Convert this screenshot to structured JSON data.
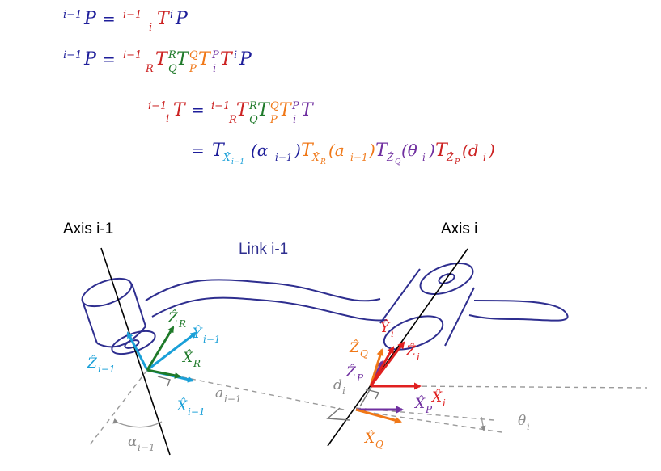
{
  "colors": {
    "red": "#cc2222",
    "green": "#1f7a2a",
    "orange": "#f07818",
    "purple": "#7030a0",
    "blue": "#1e1e9a",
    "cyan": "#1aa0d8",
    "gray": "#8a8a8a",
    "link": "#2e2e8f"
  },
  "equations": {
    "eq1": {
      "lhs_sup": "i−1",
      "lhs_base": "P",
      "eq": "=",
      "t_sup": "i−1",
      "t_sub": "i",
      "t_base": "T",
      "p_sup": "i",
      "p_base": "P"
    },
    "eq2": {
      "lhs_sup": "i−1",
      "lhs_base": "P",
      "eq": "=",
      "t1_sup": "i−1",
      "t1_sub": "R",
      "t2_sup": "R",
      "t2_sub": "Q",
      "t3_sup": "Q",
      "t3_sub": "P",
      "t4_sup": "P",
      "t4_sub": "i",
      "t_base": "T",
      "p_sup": "i",
      "p_base": "P"
    },
    "eq3": {
      "lhs_sup": "i−1",
      "lhs_sub": "i",
      "lhs_base": "T",
      "eq": "=",
      "t1_sup": "i−1",
      "t1_sub": "R",
      "t2_sup": "R",
      "t2_sub": "Q",
      "t3_sup": "Q",
      "t3_sub": "P",
      "t4_sup": "P",
      "t4_sub": "i",
      "t_base": "T"
    },
    "eq4": {
      "eq": "=",
      "f1_sub": "X̂",
      "f1_subsub": "i−1",
      "f1_arg": "(α",
      "f1_arg_sub": "i−1",
      "f2_sub": "X̂",
      "f2_subsub": "R",
      "f2_arg": "(a",
      "f2_arg_sub": "i−1",
      "f3_sub": "Ẑ",
      "f3_subsub": "Q",
      "f3_arg": "(θ",
      "f3_arg_sub": "i",
      "f4_sub": "Ẑ",
      "f4_subsub": "P",
      "f4_arg": "(d",
      "f4_arg_sub": "i",
      "close": ")",
      "t_base": "T"
    }
  },
  "diagram": {
    "axis_left_label": "Axis i-1",
    "axis_right_label": "Axis i",
    "link_label": "Link i-1",
    "left_frame": {
      "z_r": "Ẑ",
      "z_r_sub": "R",
      "y_prev": "Ŷ",
      "y_prev_sub": "i−1",
      "x_r": "X̂",
      "x_r_sub": "R",
      "z_prev": "Ẑ",
      "z_prev_sub": "i−1",
      "x_prev": "X̂",
      "x_prev_sub": "i−1",
      "a_prev": "a",
      "a_prev_sub": "i−1",
      "alpha_prev": "α",
      "alpha_prev_sub": "i−1"
    },
    "right_frame": {
      "y_i": "Ŷ",
      "y_i_sub": "i",
      "z_i": "Ẑ",
      "z_i_sub": "i",
      "z_q": "Ẑ",
      "z_q_sub": "Q",
      "z_p": "Ẑ",
      "z_p_sub": "P",
      "d_i": "d",
      "d_i_sub": "i",
      "x_i": "X̂",
      "x_i_sub": "i",
      "x_p": "X̂",
      "x_p_sub": "P",
      "x_q": "X̂",
      "x_q_sub": "Q",
      "theta_i": "θ",
      "theta_i_sub": "i"
    }
  }
}
